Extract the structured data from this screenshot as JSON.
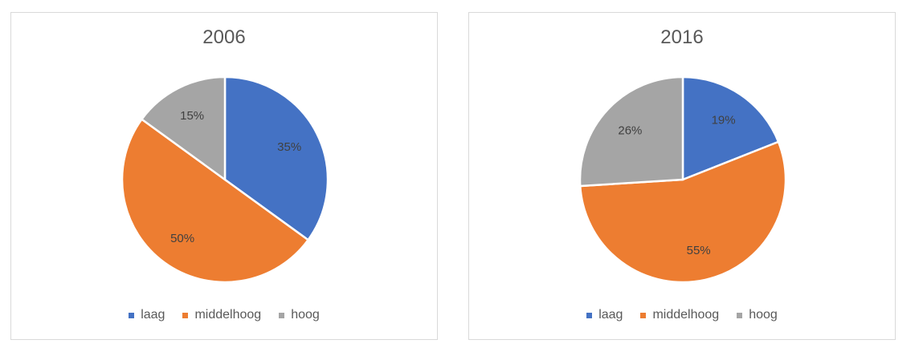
{
  "colors": {
    "laag": "#4472c4",
    "middelhoog": "#ed7d31",
    "hoog": "#a5a5a5",
    "text": "#595959"
  },
  "chart_data": [
    {
      "type": "pie",
      "title": "2006",
      "categories": [
        "laag",
        "middelhoog",
        "hoog"
      ],
      "values": [
        35,
        50,
        15
      ],
      "labels": [
        "35%",
        "50%",
        "15%"
      ],
      "legend": "bottom"
    },
    {
      "type": "pie",
      "title": "2016",
      "categories": [
        "laag",
        "middelhoog",
        "hoog"
      ],
      "values": [
        19,
        55,
        26
      ],
      "labels": [
        "19%",
        "55%",
        "26%"
      ],
      "legend": "bottom"
    }
  ]
}
